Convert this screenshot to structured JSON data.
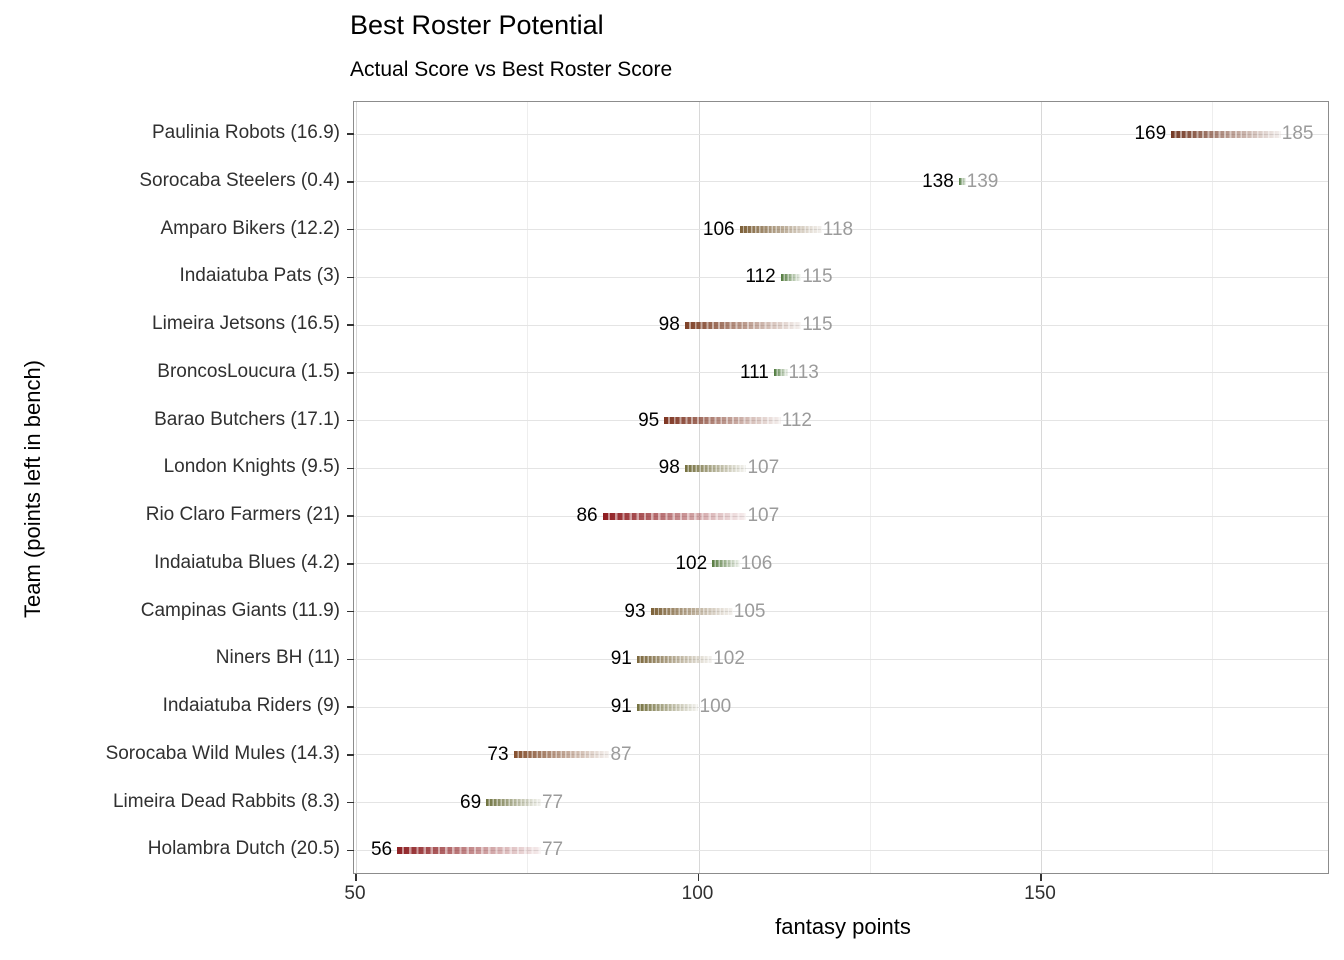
{
  "chart_data": {
    "type": "bar",
    "variant": "gradient-segment-dumbbell (actual score to best roster score)",
    "title": "Best Roster Potential",
    "subtitle": "Actual Score vs Best Roster Score",
    "xlabel": "fantasy points",
    "ylabel": "Team (points left in bench)",
    "xlim": [
      49.7,
      192.3
    ],
    "grid": true,
    "legend": "none",
    "x_major_ticks": [
      50,
      100,
      150
    ],
    "x_major_tick_labels": [
      "50",
      "100",
      "150"
    ],
    "x_minor_gridlines": [
      75,
      125,
      175
    ],
    "colors": {
      "actual_label": "#000000",
      "best_label": "#9b9b9b",
      "grid_major": "#d8d8d8",
      "grid_minor": "#eeeeee",
      "grid_row": "#e4e4e4",
      "panel_border": "#8c8c8c",
      "low_bench_green": "#4d7a3e",
      "mid_bench_olive": "#75703f",
      "high_bench_red": "#8e1c20"
    },
    "rows": [
      {
        "team": "Paulinia Robots",
        "bench": 16.9,
        "label": "Paulinia Robots (16.9)",
        "actual": 169,
        "best": 185,
        "color": "#743a25"
      },
      {
        "team": "Sorocaba Steelers",
        "bench": 0.4,
        "label": "Sorocaba Steelers (0.4)",
        "actual": 138,
        "best": 139,
        "color": "#4d7a3e"
      },
      {
        "team": "Amparo Bikers",
        "bench": 12.2,
        "label": "Amparo Bikers (12.2)",
        "actual": 106,
        "best": 118,
        "color": "#7d6038"
      },
      {
        "team": "Indaiatuba Pats",
        "bench": 3,
        "label": "Indaiatuba Pats (3)",
        "actual": 112,
        "best": 115,
        "color": "#527b3e"
      },
      {
        "team": "Limeira Jetsons",
        "bench": 16.5,
        "label": "Limeira Jetsons (16.5)",
        "actual": 98,
        "best": 115,
        "color": "#7e4127"
      },
      {
        "team": "BroncosLoucura",
        "bench": 1.5,
        "label": "BroncosLoucura (1.5)",
        "actual": 111,
        "best": 113,
        "color": "#4e7a3d"
      },
      {
        "team": "Barao Butchers",
        "bench": 17.1,
        "label": "Barao Butchers (17.1)",
        "actual": 95,
        "best": 112,
        "color": "#7e3522"
      },
      {
        "team": "London Knights",
        "bench": 9.5,
        "label": "London Knights (9.5)",
        "actual": 98,
        "best": 107,
        "color": "#75703f"
      },
      {
        "team": "Rio Claro Farmers",
        "bench": 21,
        "label": "Rio Claro Farmers (21)",
        "actual": 86,
        "best": 107,
        "color": "#8e1c20"
      },
      {
        "team": "Indaiatuba Blues",
        "bench": 4.2,
        "label": "Indaiatuba Blues (4.2)",
        "actual": 102,
        "best": 106,
        "color": "#587c41"
      },
      {
        "team": "Campinas Giants",
        "bench": 11.9,
        "label": "Campinas Giants (11.9)",
        "actual": 93,
        "best": 105,
        "color": "#7d6239"
      },
      {
        "team": "Niners BH",
        "bench": 11,
        "label": "Niners BH (11)",
        "actual": 91,
        "best": 102,
        "color": "#7b673c"
      },
      {
        "team": "Indaiatuba Riders",
        "bench": 9,
        "label": "Indaiatuba Riders (9)",
        "actual": 91,
        "best": 100,
        "color": "#74713f"
      },
      {
        "team": "Sorocaba Wild Mules",
        "bench": 14.3,
        "label": "Sorocaba Wild Mules (14.3)",
        "actual": 73,
        "best": 87,
        "color": "#85502f"
      },
      {
        "team": "Limeira Dead Rabbits",
        "bench": 8.3,
        "label": "Limeira Dead Rabbits (8.3)",
        "actual": 69,
        "best": 77,
        "color": "#6f7340"
      },
      {
        "team": "Holambra Dutch",
        "bench": 20.5,
        "label": "Holambra Dutch (20.5)",
        "actual": 56,
        "best": 77,
        "color": "#8e2023"
      }
    ]
  }
}
